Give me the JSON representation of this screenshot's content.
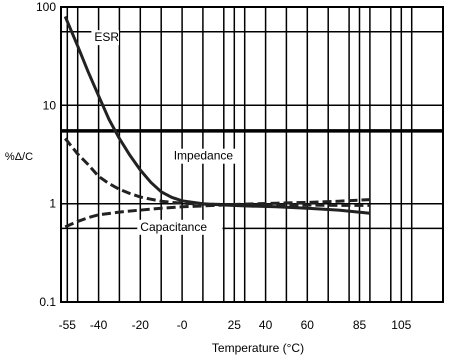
{
  "chart_data": {
    "type": "line",
    "title": "",
    "xlabel": "Temperature (°C)",
    "ylabel": "%Δ/C",
    "x_axis": {
      "range": [
        -58,
        125
      ],
      "ticks": [
        {
          "value": -55,
          "label": "-55"
        },
        {
          "value": -40,
          "label": "-40"
        },
        {
          "value": -20,
          "label": "-20"
        },
        {
          "value": 0,
          "label": "-0"
        },
        {
          "value": 25,
          "label": "25"
        },
        {
          "value": 40,
          "label": "40"
        },
        {
          "value": 60,
          "label": "60"
        },
        {
          "value": 85,
          "label": "85"
        },
        {
          "value": 105,
          "label": "105"
        }
      ],
      "grid_values": [
        -55,
        -50,
        -40,
        -30,
        -20,
        -10,
        0,
        10,
        20,
        25,
        30,
        40,
        50,
        60,
        70,
        80,
        85,
        90,
        100,
        105,
        110,
        125
      ]
    },
    "y_axis": {
      "scale": "log",
      "range": [
        0.1,
        100
      ],
      "ticks": [
        {
          "value": 100,
          "label": "100"
        },
        {
          "value": 10,
          "label": "10"
        },
        {
          "value": 1,
          "label": "1"
        },
        {
          "value": 0.1,
          "label": "0.1"
        }
      ],
      "grid_values": [
        100,
        56,
        10,
        5.5,
        1,
        0.56,
        0.1
      ]
    },
    "grid": true,
    "reference_line": {
      "y": 5.5
    },
    "series": [
      {
        "name": "ESR",
        "style": "solid",
        "x": [
          -56,
          -50,
          -45,
          -40,
          -35,
          -30,
          -25,
          -20,
          -15,
          -10,
          -5,
          0,
          10,
          20,
          30,
          45,
          60,
          75,
          90
        ],
        "y": [
          80,
          40,
          22,
          12.5,
          7.2,
          4.6,
          3.1,
          2.2,
          1.65,
          1.32,
          1.16,
          1.07,
          1.0,
          0.97,
          0.95,
          0.93,
          0.9,
          0.86,
          0.8
        ]
      },
      {
        "name": "Impedance",
        "style": "dashed",
        "x": [
          -56,
          -50,
          -45,
          -40,
          -35,
          -30,
          -25,
          -20,
          -15,
          -10,
          -5,
          0,
          10,
          20,
          30,
          45,
          60,
          75,
          90
        ],
        "y": [
          4.6,
          3.2,
          2.5,
          1.9,
          1.6,
          1.4,
          1.27,
          1.17,
          1.11,
          1.06,
          1.03,
          1.01,
          0.99,
          0.98,
          0.97,
          0.97,
          0.97,
          0.96,
          0.96
        ]
      },
      {
        "name": "Capacitance",
        "style": "dashed",
        "x": [
          -56,
          -50,
          -45,
          -40,
          -30,
          -20,
          -10,
          0,
          10,
          20,
          30,
          45,
          60,
          75,
          90
        ],
        "y": [
          0.58,
          0.66,
          0.72,
          0.77,
          0.82,
          0.86,
          0.9,
          0.93,
          0.95,
          0.97,
          0.99,
          1.01,
          1.03,
          1.06,
          1.1
        ]
      }
    ],
    "annotations": [
      {
        "text": "ESR",
        "x": -42,
        "y": 45
      },
      {
        "text": "Impedance",
        "x": -4,
        "y": 2.8
      },
      {
        "text": "Capacitance",
        "x": -20,
        "y": 0.53
      }
    ]
  }
}
